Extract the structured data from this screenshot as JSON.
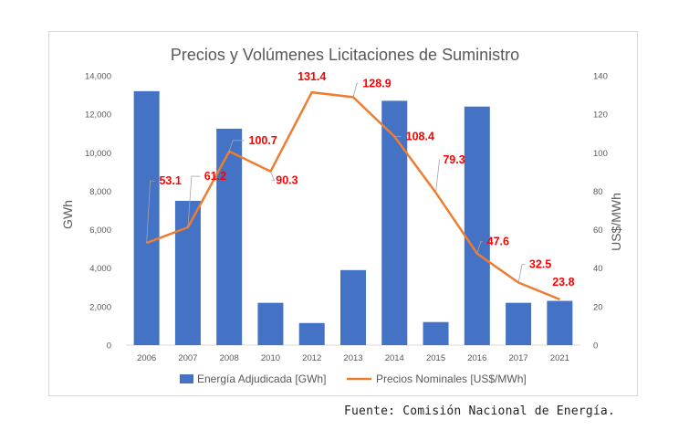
{
  "chart_data": {
    "type": "bar+line",
    "title": "Precios y Volúmenes Licitaciones de Suministro",
    "categories": [
      "2006",
      "2007",
      "2008",
      "2010",
      "2012",
      "2013",
      "2014",
      "2015",
      "2016",
      "2017",
      "2021"
    ],
    "ylabel_left": "GWh",
    "ylabel_right": "US$/MWh",
    "ylim_left": [
      0,
      14000
    ],
    "ylim_right": [
      0,
      140
    ],
    "yticks_left": [
      "0",
      "2,000",
      "4,000",
      "6,000",
      "8,000",
      "10,000",
      "12,000",
      "14,000"
    ],
    "yticks_right": [
      "0",
      "20",
      "40",
      "60",
      "80",
      "100",
      "120",
      "140"
    ],
    "grid": false,
    "legend_position": "bottom",
    "series": [
      {
        "name": "Energía Adjudicada [GWh]",
        "type": "bar",
        "axis": "left",
        "color": "#4472c4",
        "values": [
          13200,
          7500,
          11250,
          2200,
          1150,
          3900,
          12700,
          1200,
          12400,
          2200,
          2300
        ]
      },
      {
        "name": "Precios Nominales [US$/MWh]",
        "type": "line",
        "axis": "right",
        "color": "#ed7d31",
        "values": [
          53.1,
          61.2,
          100.7,
          90.3,
          131.4,
          128.9,
          108.4,
          79.3,
          47.6,
          32.5,
          23.8
        ],
        "labels": [
          "53.1",
          "61.2",
          "100.7",
          "90.3",
          "131.4",
          "128.9",
          "108.4",
          "79.3",
          "47.6",
          "32.5",
          "23.8"
        ],
        "label_color": "#ff0000"
      }
    ]
  },
  "source_note": "Fuente: Comisión Nacional de Energía."
}
